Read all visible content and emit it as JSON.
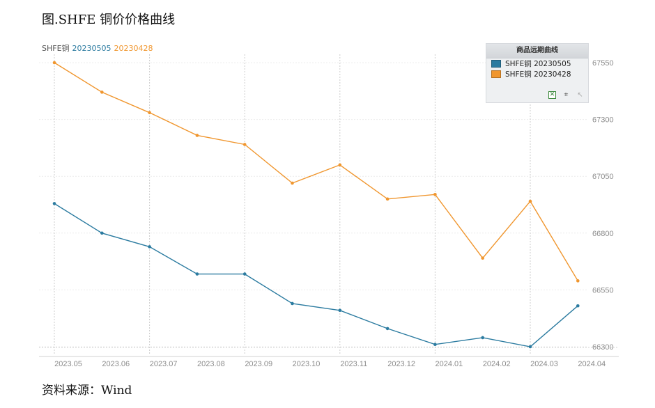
{
  "figure_title": "图.SHFE 铜价价格曲线",
  "source_text": "资料来源：Wind",
  "header": {
    "prefix": "SHFE铜",
    "series1_label": "20230505",
    "series2_label": "20230428"
  },
  "legend": {
    "title": "商品远期曲线",
    "items": [
      {
        "label": "SHFE铜 20230505",
        "color": "#2b7ba0"
      },
      {
        "label": "SHFE铜 20230428",
        "color": "#f0962e"
      }
    ],
    "tool_icons": [
      "excel-export-icon",
      "crop-icon",
      "cursor-icon"
    ]
  },
  "colors": {
    "series1": "#2b7ba0",
    "series2": "#f0962e",
    "axis_text": "#8c8c8c",
    "grid": "#cccccc"
  },
  "chart_data": {
    "type": "line",
    "categories": [
      "2023.05",
      "2023.06",
      "2023.07",
      "2023.08",
      "2023.09",
      "2023.10",
      "2023.11",
      "2023.12",
      "2024.01",
      "2024.02",
      "2024.03",
      "2024.04"
    ],
    "series": [
      {
        "name": "SHFE铜 20230505",
        "color": "#2b7ba0",
        "values": [
          66930,
          66800,
          66740,
          66620,
          66620,
          66490,
          66460,
          66380,
          66310,
          66340,
          66300,
          66480
        ]
      },
      {
        "name": "SHFE铜 20230428",
        "color": "#f0962e",
        "values": [
          67550,
          67420,
          67330,
          67230,
          67190,
          67020,
          67100,
          66950,
          66970,
          66690,
          66940,
          66590
        ]
      }
    ],
    "yticks": [
      66300,
      66550,
      66800,
      67050,
      67300,
      67550
    ],
    "ylim": [
      66300,
      67550
    ],
    "y_axis_side": "right",
    "grid": true,
    "legend_position": "top-right"
  }
}
